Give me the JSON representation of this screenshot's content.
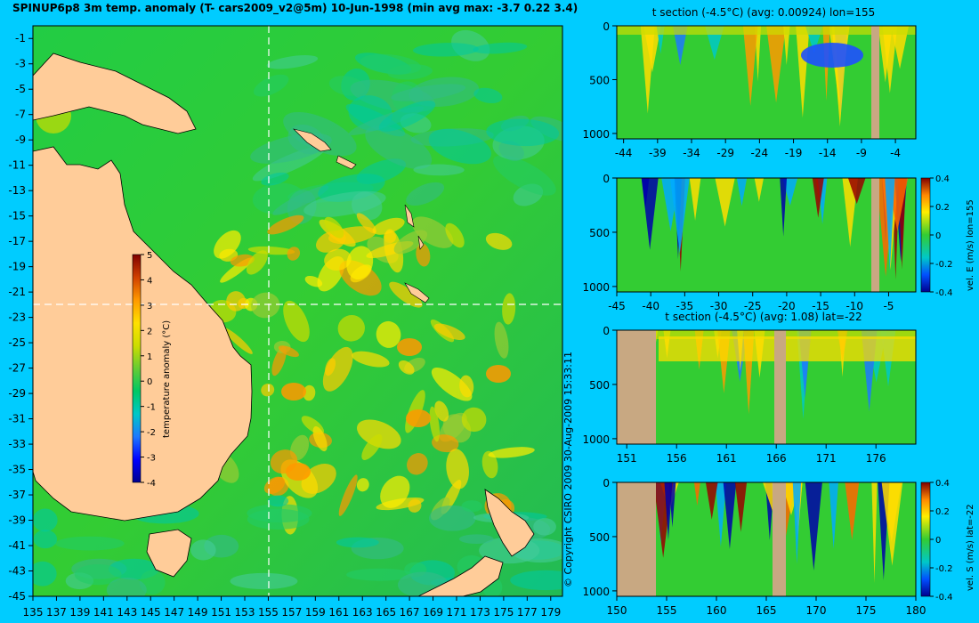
{
  "title": "SPINUP6p8 3m temp. anomaly (T- cars2009_v2@5m) 10-Jun-1998 (min avg max: -3.7 0.22 3.4)",
  "copyright": "© Copyright CSIRO 2009   30-Aug-2009 15:33:11",
  "colors": {
    "background": "#00ccff",
    "land": "#ffcc99",
    "section_land": "#c8a882",
    "crosshair": "#ffffff"
  },
  "colormap": [
    "#00008f",
    "#0000ff",
    "#1e78ff",
    "#00c8c8",
    "#00c864",
    "#32cd32",
    "#9acd32",
    "#ffff00",
    "#ffc800",
    "#ff8c00",
    "#e04000",
    "#a00000",
    "#800000"
  ],
  "chart_data": [
    {
      "type": "heatmap",
      "name": "map",
      "xticks": [
        "135",
        "137",
        "139",
        "141",
        "143",
        "145",
        "147",
        "149",
        "151",
        "153",
        "155",
        "157",
        "159",
        "161",
        "163",
        "165",
        "167",
        "169",
        "171",
        "173",
        "175",
        "177",
        "179"
      ],
      "yticks": [
        "-1",
        "-3",
        "-5",
        "-7",
        "-9",
        "-11",
        "-13",
        "-15",
        "-17",
        "-19",
        "-21",
        "-23",
        "-25",
        "-27",
        "-29",
        "-31",
        "-33",
        "-35",
        "-37",
        "-39",
        "-41",
        "-43",
        "-45"
      ],
      "xlim": [
        135,
        180
      ],
      "ylim": [
        -45,
        0
      ],
      "crosshair": {
        "lon": 155,
        "lat": -22
      },
      "colorbar": {
        "label": "temperature anomaly (°C)",
        "ticks": [
          "5",
          "4",
          "3",
          "2",
          "1",
          "0",
          "-1",
          "-2",
          "-3",
          "-4"
        ],
        "range": [
          -4,
          5
        ]
      }
    },
    {
      "type": "heatmap",
      "name": "section1",
      "title": "t section (-4.5°C) (avg: 0.00924) lon=155",
      "xticks": [
        "-44",
        "-39",
        "-34",
        "-29",
        "-24",
        "-19",
        "-14",
        "-9",
        "-4"
      ],
      "yticks": [
        "0",
        "500",
        "1000"
      ],
      "xlim": [
        -45,
        -1
      ],
      "ylim": [
        1050,
        0
      ]
    },
    {
      "type": "heatmap",
      "name": "section2",
      "xticks": [
        "-45",
        "-40",
        "-35",
        "-30",
        "-25",
        "-20",
        "-15",
        "-10",
        "-5"
      ],
      "yticks": [
        "0",
        "500",
        "1000"
      ],
      "xlim": [
        -45,
        -1
      ],
      "ylim": [
        1050,
        0
      ],
      "colorbar": {
        "label": "vel. E (m/s) lon=155",
        "ticks": [
          "0.4",
          "0.2",
          "0",
          "-0.2",
          "-0.4"
        ],
        "range": [
          -0.4,
          0.4
        ]
      }
    },
    {
      "type": "heatmap",
      "name": "section3",
      "title": "t section (-4.5°C) (avg: 1.08) lat=-22",
      "xticks": [
        "151",
        "156",
        "161",
        "166",
        "171",
        "176"
      ],
      "yticks": [
        "0",
        "500",
        "1000"
      ],
      "xlim": [
        150,
        180
      ],
      "ylim": [
        1050,
        0
      ]
    },
    {
      "type": "heatmap",
      "name": "section4",
      "xticks": [
        "150",
        "155",
        "160",
        "165",
        "170",
        "175",
        "180"
      ],
      "yticks": [
        "0",
        "500",
        "1000"
      ],
      "xlim": [
        150,
        180
      ],
      "ylim": [
        1050,
        0
      ],
      "colorbar": {
        "label": "vel. S (m/s) lat=-22",
        "ticks": [
          "0.4",
          "0.2",
          "0",
          "-0.2",
          "-0.4"
        ],
        "range": [
          -0.4,
          0.4
        ]
      }
    }
  ]
}
